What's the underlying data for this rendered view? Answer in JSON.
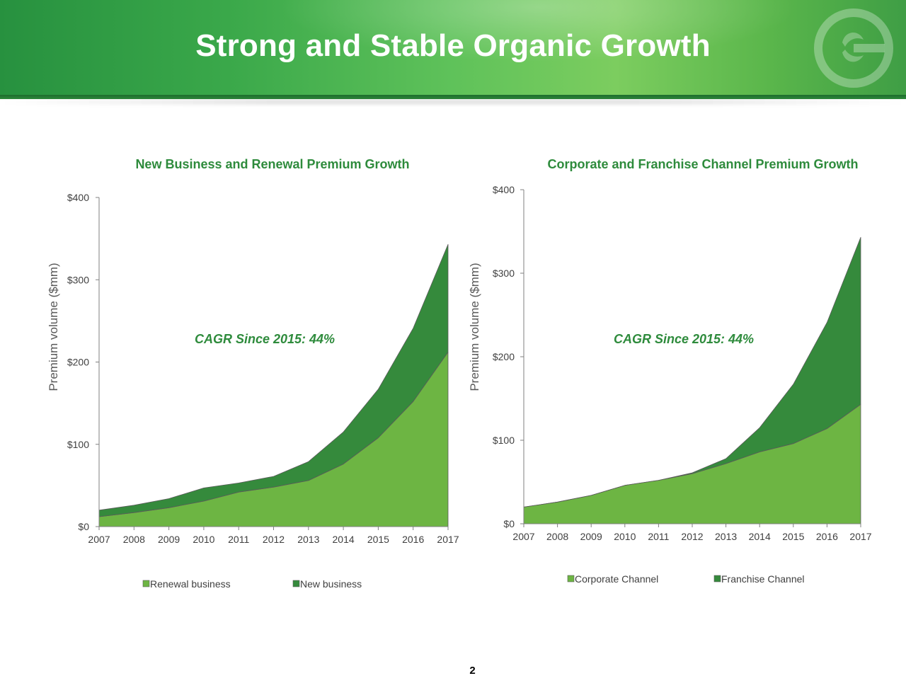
{
  "header": {
    "title": "Strong and Stable Organic Growth"
  },
  "footer": {
    "page_number": "2"
  },
  "colors": {
    "light_green": "#6db543",
    "dark_green": "#358a3c",
    "title_green": "#2e8b3c",
    "axis": "#808080"
  },
  "chart_data": [
    {
      "type": "area",
      "stacked": true,
      "title": "New Business and Renewal Premium Growth",
      "ylabel": "Premium volume ($mm)",
      "xlabel": "",
      "ylim": [
        0,
        400
      ],
      "yticks": [
        0,
        100,
        200,
        300,
        400
      ],
      "ytick_labels": [
        "$0",
        "$100",
        "$200",
        "$300",
        "$400"
      ],
      "categories": [
        "2007",
        "2008",
        "2009",
        "2010",
        "2011",
        "2012",
        "2013",
        "2014",
        "2015",
        "2016",
        "2017"
      ],
      "series": [
        {
          "name": "Renewal business",
          "color": "#6db543",
          "values": [
            12,
            17,
            23,
            31,
            42,
            48,
            56,
            76,
            108,
            152,
            212
          ]
        },
        {
          "name": "New business",
          "color": "#358a3c",
          "values": [
            8,
            9,
            11,
            16,
            11,
            13,
            23,
            39,
            59,
            89,
            131
          ]
        }
      ],
      "annotation": "CAGR Since 2015: 44%",
      "legend_position": "bottom"
    },
    {
      "type": "area",
      "stacked": true,
      "title": "Corporate and Franchise Channel Premium Growth",
      "ylabel": "Premium volume ($mm)",
      "xlabel": "",
      "ylim": [
        0,
        400
      ],
      "yticks": [
        0,
        100,
        200,
        300,
        400
      ],
      "ytick_labels": [
        "$0",
        "$100",
        "$200",
        "$300",
        "$400"
      ],
      "categories": [
        "2007",
        "2008",
        "2009",
        "2010",
        "2011",
        "2012",
        "2013",
        "2014",
        "2015",
        "2016",
        "2017"
      ],
      "series": [
        {
          "name": "Corporate Channel",
          "color": "#6db543",
          "values": [
            20,
            26,
            34,
            46,
            52,
            60,
            72,
            86,
            96,
            114,
            143
          ]
        },
        {
          "name": "Franchise Channel",
          "color": "#358a3c",
          "values": [
            0,
            0,
            0,
            0,
            0,
            1,
            6,
            29,
            71,
            127,
            200
          ]
        }
      ],
      "annotation": "CAGR Since 2015: 44%",
      "legend_position": "bottom"
    }
  ]
}
